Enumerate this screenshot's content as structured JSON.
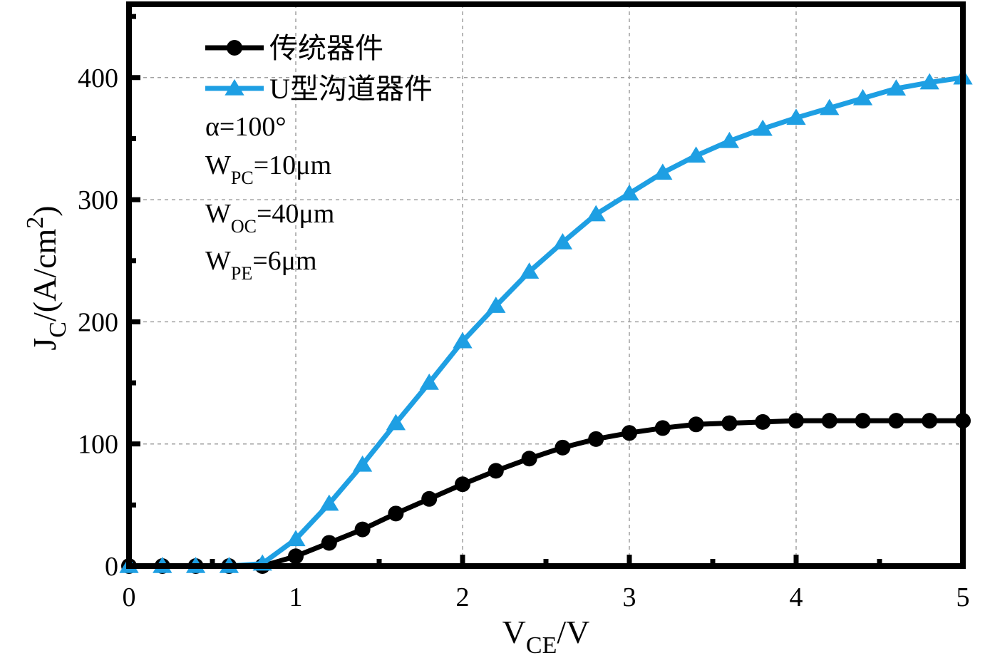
{
  "chart_data": {
    "type": "line",
    "xlabel": {
      "main": "V",
      "sub": "CE",
      "suffix": "/V"
    },
    "ylabel": {
      "main": "J",
      "sub": "C",
      "mid": "/(A/cm",
      "sup": "2",
      "end": ")"
    },
    "xlim": [
      0,
      5
    ],
    "ylim": [
      0,
      460
    ],
    "x_ticks": [
      0,
      1,
      2,
      3,
      4,
      5
    ],
    "y_ticks": [
      0,
      100,
      200,
      300,
      400
    ],
    "grid": true,
    "legend_position": "top-left",
    "series": [
      {
        "name": "传统器件",
        "color": "#000000",
        "marker": "circle",
        "x": [
          0,
          0.2,
          0.4,
          0.6,
          0.8,
          1.0,
          1.2,
          1.4,
          1.6,
          1.8,
          2.0,
          2.2,
          2.4,
          2.6,
          2.8,
          3.0,
          3.2,
          3.4,
          3.6,
          3.8,
          4.0,
          4.2,
          4.4,
          4.6,
          4.8,
          5.0
        ],
        "y": [
          0,
          0,
          0,
          0,
          0,
          8,
          19,
          30,
          43,
          55,
          67,
          78,
          88,
          97,
          104,
          109,
          113,
          116,
          117,
          118,
          119,
          119,
          119,
          119,
          119,
          119
        ]
      },
      {
        "name": "U型沟道器件",
        "color": "#1E9FE3",
        "marker": "triangle",
        "x": [
          0,
          0.2,
          0.4,
          0.6,
          0.8,
          1.0,
          1.2,
          1.4,
          1.6,
          1.8,
          2.0,
          2.2,
          2.4,
          2.6,
          2.8,
          3.0,
          3.2,
          3.4,
          3.6,
          3.8,
          4.0,
          4.2,
          4.4,
          4.6,
          4.8,
          5.0
        ],
        "y": [
          0,
          0,
          0,
          0,
          2,
          22,
          51,
          83,
          117,
          150,
          184,
          213,
          241,
          265,
          288,
          305,
          322,
          336,
          348,
          358,
          367,
          375,
          383,
          391,
          396,
          400
        ]
      }
    ],
    "annotations": [
      {
        "main": "α=100°",
        "sub": "",
        "rest": ""
      },
      {
        "main": "W",
        "sub": "PC",
        "rest": "=10μm"
      },
      {
        "main": "W",
        "sub": "OC",
        "rest": "=40μm"
      },
      {
        "main": "W",
        "sub": "PE",
        "rest": "=6μm"
      }
    ]
  }
}
